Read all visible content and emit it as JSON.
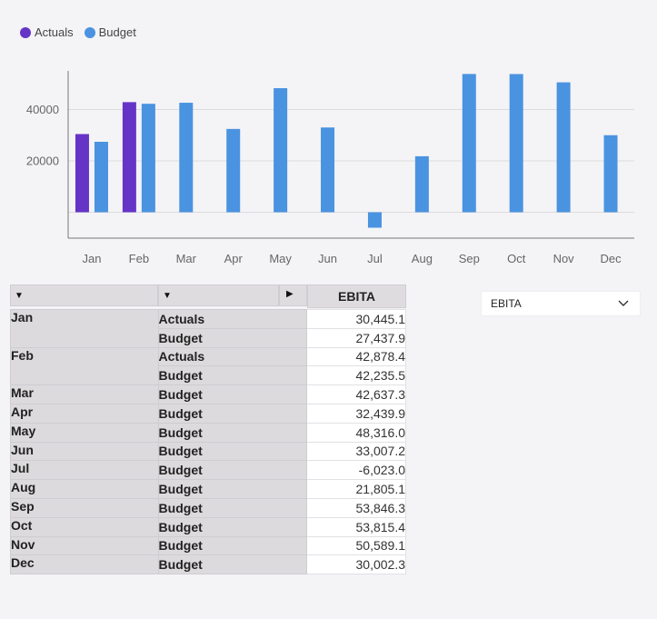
{
  "legend": [
    {
      "label": "Actuals",
      "color": "#6534c7"
    },
    {
      "label": "Budget",
      "color": "#4a93e0"
    }
  ],
  "chart_data": {
    "type": "bar",
    "categories": [
      "Jan",
      "Feb",
      "Mar",
      "Apr",
      "May",
      "Jun",
      "Jul",
      "Aug",
      "Sep",
      "Oct",
      "Nov",
      "Dec"
    ],
    "series": [
      {
        "name": "Actuals",
        "color": "#6534c7",
        "values": [
          30445.1,
          42878.4,
          null,
          null,
          null,
          null,
          null,
          null,
          null,
          null,
          null,
          null
        ]
      },
      {
        "name": "Budget",
        "color": "#4a93e0",
        "values": [
          27437.9,
          42235.5,
          42637.3,
          32439.9,
          48316.0,
          33007.2,
          -6023.0,
          21805.1,
          53846.3,
          53815.4,
          50589.1,
          30002.3
        ]
      }
    ],
    "yticks": [
      20000,
      40000
    ],
    "ylim": [
      -10000,
      56000
    ],
    "grid": true,
    "legend_position": "top-left"
  },
  "table": {
    "measure_header": "EBITA",
    "groups": [
      {
        "month": "Jan",
        "rows": [
          {
            "scenario": "Actuals",
            "value": "30,445.1"
          },
          {
            "scenario": "Budget",
            "value": "27,437.9"
          }
        ]
      },
      {
        "month": "Feb",
        "rows": [
          {
            "scenario": "Actuals",
            "value": "42,878.4"
          },
          {
            "scenario": "Budget",
            "value": "42,235.5"
          }
        ]
      },
      {
        "month": "Mar",
        "rows": [
          {
            "scenario": "Budget",
            "value": "42,637.3"
          }
        ]
      },
      {
        "month": "Apr",
        "rows": [
          {
            "scenario": "Budget",
            "value": "32,439.9"
          }
        ]
      },
      {
        "month": "May",
        "rows": [
          {
            "scenario": "Budget",
            "value": "48,316.0"
          }
        ]
      },
      {
        "month": "Jun",
        "rows": [
          {
            "scenario": "Budget",
            "value": "33,007.2"
          }
        ]
      },
      {
        "month": "Jul",
        "rows": [
          {
            "scenario": "Budget",
            "value": "-6,023.0"
          }
        ]
      },
      {
        "month": "Aug",
        "rows": [
          {
            "scenario": "Budget",
            "value": "21,805.1"
          }
        ]
      },
      {
        "month": "Sep",
        "rows": [
          {
            "scenario": "Budget",
            "value": "53,846.3"
          }
        ]
      },
      {
        "month": "Oct",
        "rows": [
          {
            "scenario": "Budget",
            "value": "53,815.4"
          }
        ]
      },
      {
        "month": "Nov",
        "rows": [
          {
            "scenario": "Budget",
            "value": "50,589.1"
          }
        ]
      },
      {
        "month": "Dec",
        "rows": [
          {
            "scenario": "Budget",
            "value": "30,002.3"
          }
        ]
      }
    ]
  },
  "dropdown": {
    "selected": "EBITA"
  }
}
